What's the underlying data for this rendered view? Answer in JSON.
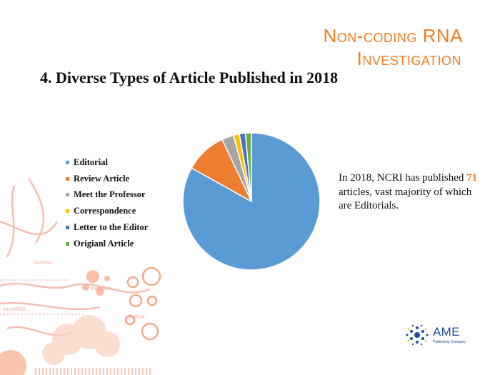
{
  "header": {
    "journal_line1": "Non-coding RNA",
    "journal_line2": "Investigation",
    "slide_title": "4. Diverse Types of Article Published in 2018",
    "accent_color": "#F07E26"
  },
  "summary": {
    "prefix": "In 2018, NCRI has published ",
    "count": "71",
    "suffix": " articles, vast majority of which are Editorials."
  },
  "decor_labels": {
    "lncrna": "lncRNA",
    "exosome": "exosome",
    "microrna": "microRNA",
    "circrna": "circRNA"
  },
  "logo": {
    "name": "AME",
    "subtitle": "Publishing Company",
    "color": "#1F4E9A"
  },
  "chart_data": {
    "type": "pie",
    "legend_position": "left",
    "categories": [
      "Editorial",
      "Review Article",
      "Meet the Professor",
      "Correspondence",
      "Letter to the Editor",
      "Origianl Article"
    ],
    "values": [
      59,
      7,
      2,
      1,
      1,
      1
    ],
    "colors": [
      "#5B9BD5",
      "#ED7D31",
      "#A5A5A5",
      "#FFC000",
      "#4472C4",
      "#70AD47"
    ]
  }
}
